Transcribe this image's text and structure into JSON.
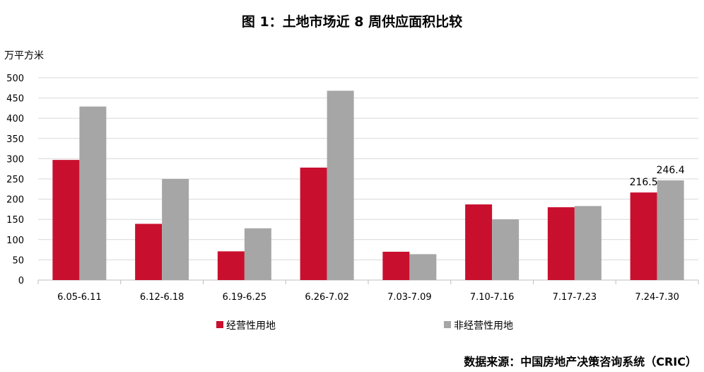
{
  "chart_data": {
    "type": "bar",
    "title": "图 1：土地市场近 8 周供应面积比较",
    "ylabel": "万平方米",
    "xlabel": "",
    "ylim": [
      0,
      500
    ],
    "yticks": [
      0,
      50,
      100,
      150,
      200,
      250,
      300,
      350,
      400,
      450,
      500
    ],
    "grid": true,
    "legend_position": "bottom",
    "categories": [
      "6.05-6.11",
      "6.12-6.18",
      "6.19-6.25",
      "6.26-7.02",
      "7.03-7.09",
      "7.10-7.16",
      "7.17-7.23",
      "7.24-7.30"
    ],
    "series": [
      {
        "name": "经营性用地",
        "color": "#C8102E",
        "values": [
          297,
          139,
          71,
          278,
          70,
          187,
          180,
          216.5
        ]
      },
      {
        "name": "非经营性用地",
        "color": "#A6A6A6",
        "values": [
          429,
          250,
          128,
          468,
          64,
          150,
          183,
          246.4
        ]
      }
    ],
    "data_labels": [
      {
        "series": 0,
        "index": 7,
        "text": "216.5"
      },
      {
        "series": 1,
        "index": 7,
        "text": "246.4"
      }
    ]
  },
  "source": "数据来源：中国房地产决策咨询系统（CRIC）"
}
